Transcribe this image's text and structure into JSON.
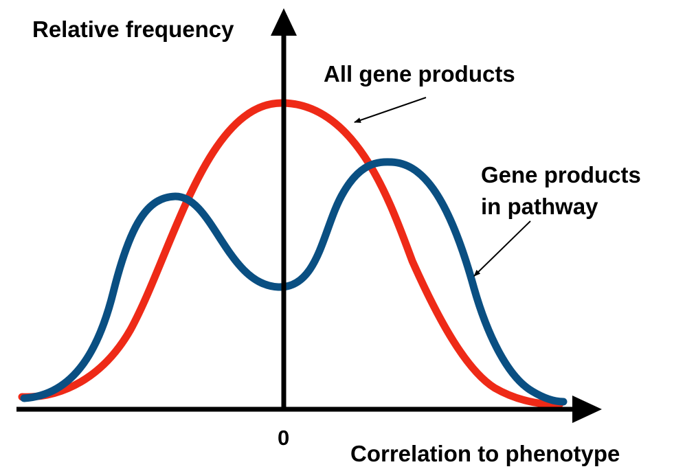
{
  "axes": {
    "y_label": "Relative frequency",
    "x_label": "Correlation to phenotype",
    "origin_tick": "0"
  },
  "curves": {
    "all": {
      "label": "All gene products",
      "color": "#ee2a17"
    },
    "pathway": {
      "label_line1": "Gene products",
      "label_line2": "in pathway",
      "color": "#0a4f82"
    }
  },
  "axis_color": "#000000"
}
